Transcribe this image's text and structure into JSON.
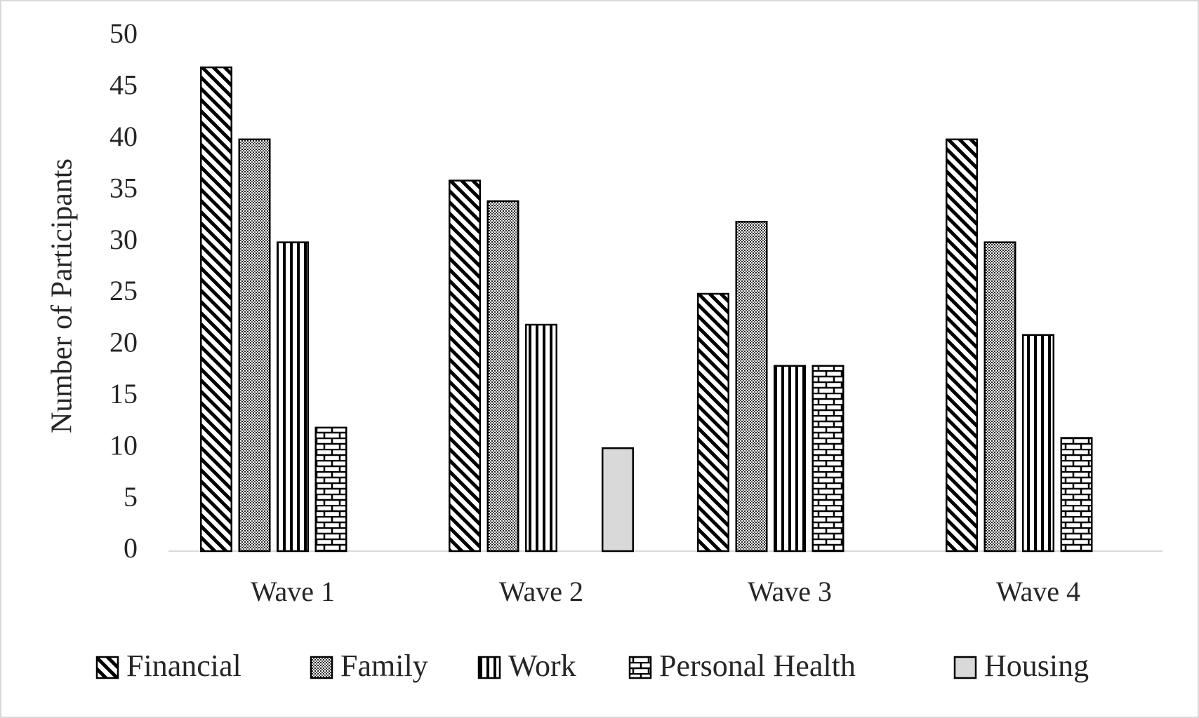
{
  "chart_data": {
    "type": "bar",
    "y_label": "Number of Participants",
    "categories": [
      "Wave 1",
      "Wave 2",
      "Wave 3",
      "Wave 4"
    ],
    "series": [
      {
        "name": "Financial",
        "color": "#000000",
        "pattern": "diagonal",
        "values": [
          47,
          36,
          25,
          40
        ]
      },
      {
        "name": "Family",
        "color": "#000000",
        "pattern": "dots",
        "values": [
          40,
          34,
          32,
          30
        ]
      },
      {
        "name": "Work",
        "color": "#000000",
        "pattern": "vertical",
        "values": [
          30,
          22,
          18,
          21
        ]
      },
      {
        "name": "Personal Health",
        "color": "#000000",
        "pattern": "brick",
        "values": [
          12,
          null,
          18,
          11
        ]
      },
      {
        "name": "Housing",
        "color": "#d9d9d9",
        "pattern": "solid",
        "values": [
          null,
          10,
          null,
          null
        ]
      }
    ],
    "ylim": [
      0,
      50
    ],
    "yticks": [
      0,
      5,
      10,
      15,
      20,
      25,
      30,
      35,
      40,
      45,
      50
    ],
    "legend": "bottom"
  }
}
